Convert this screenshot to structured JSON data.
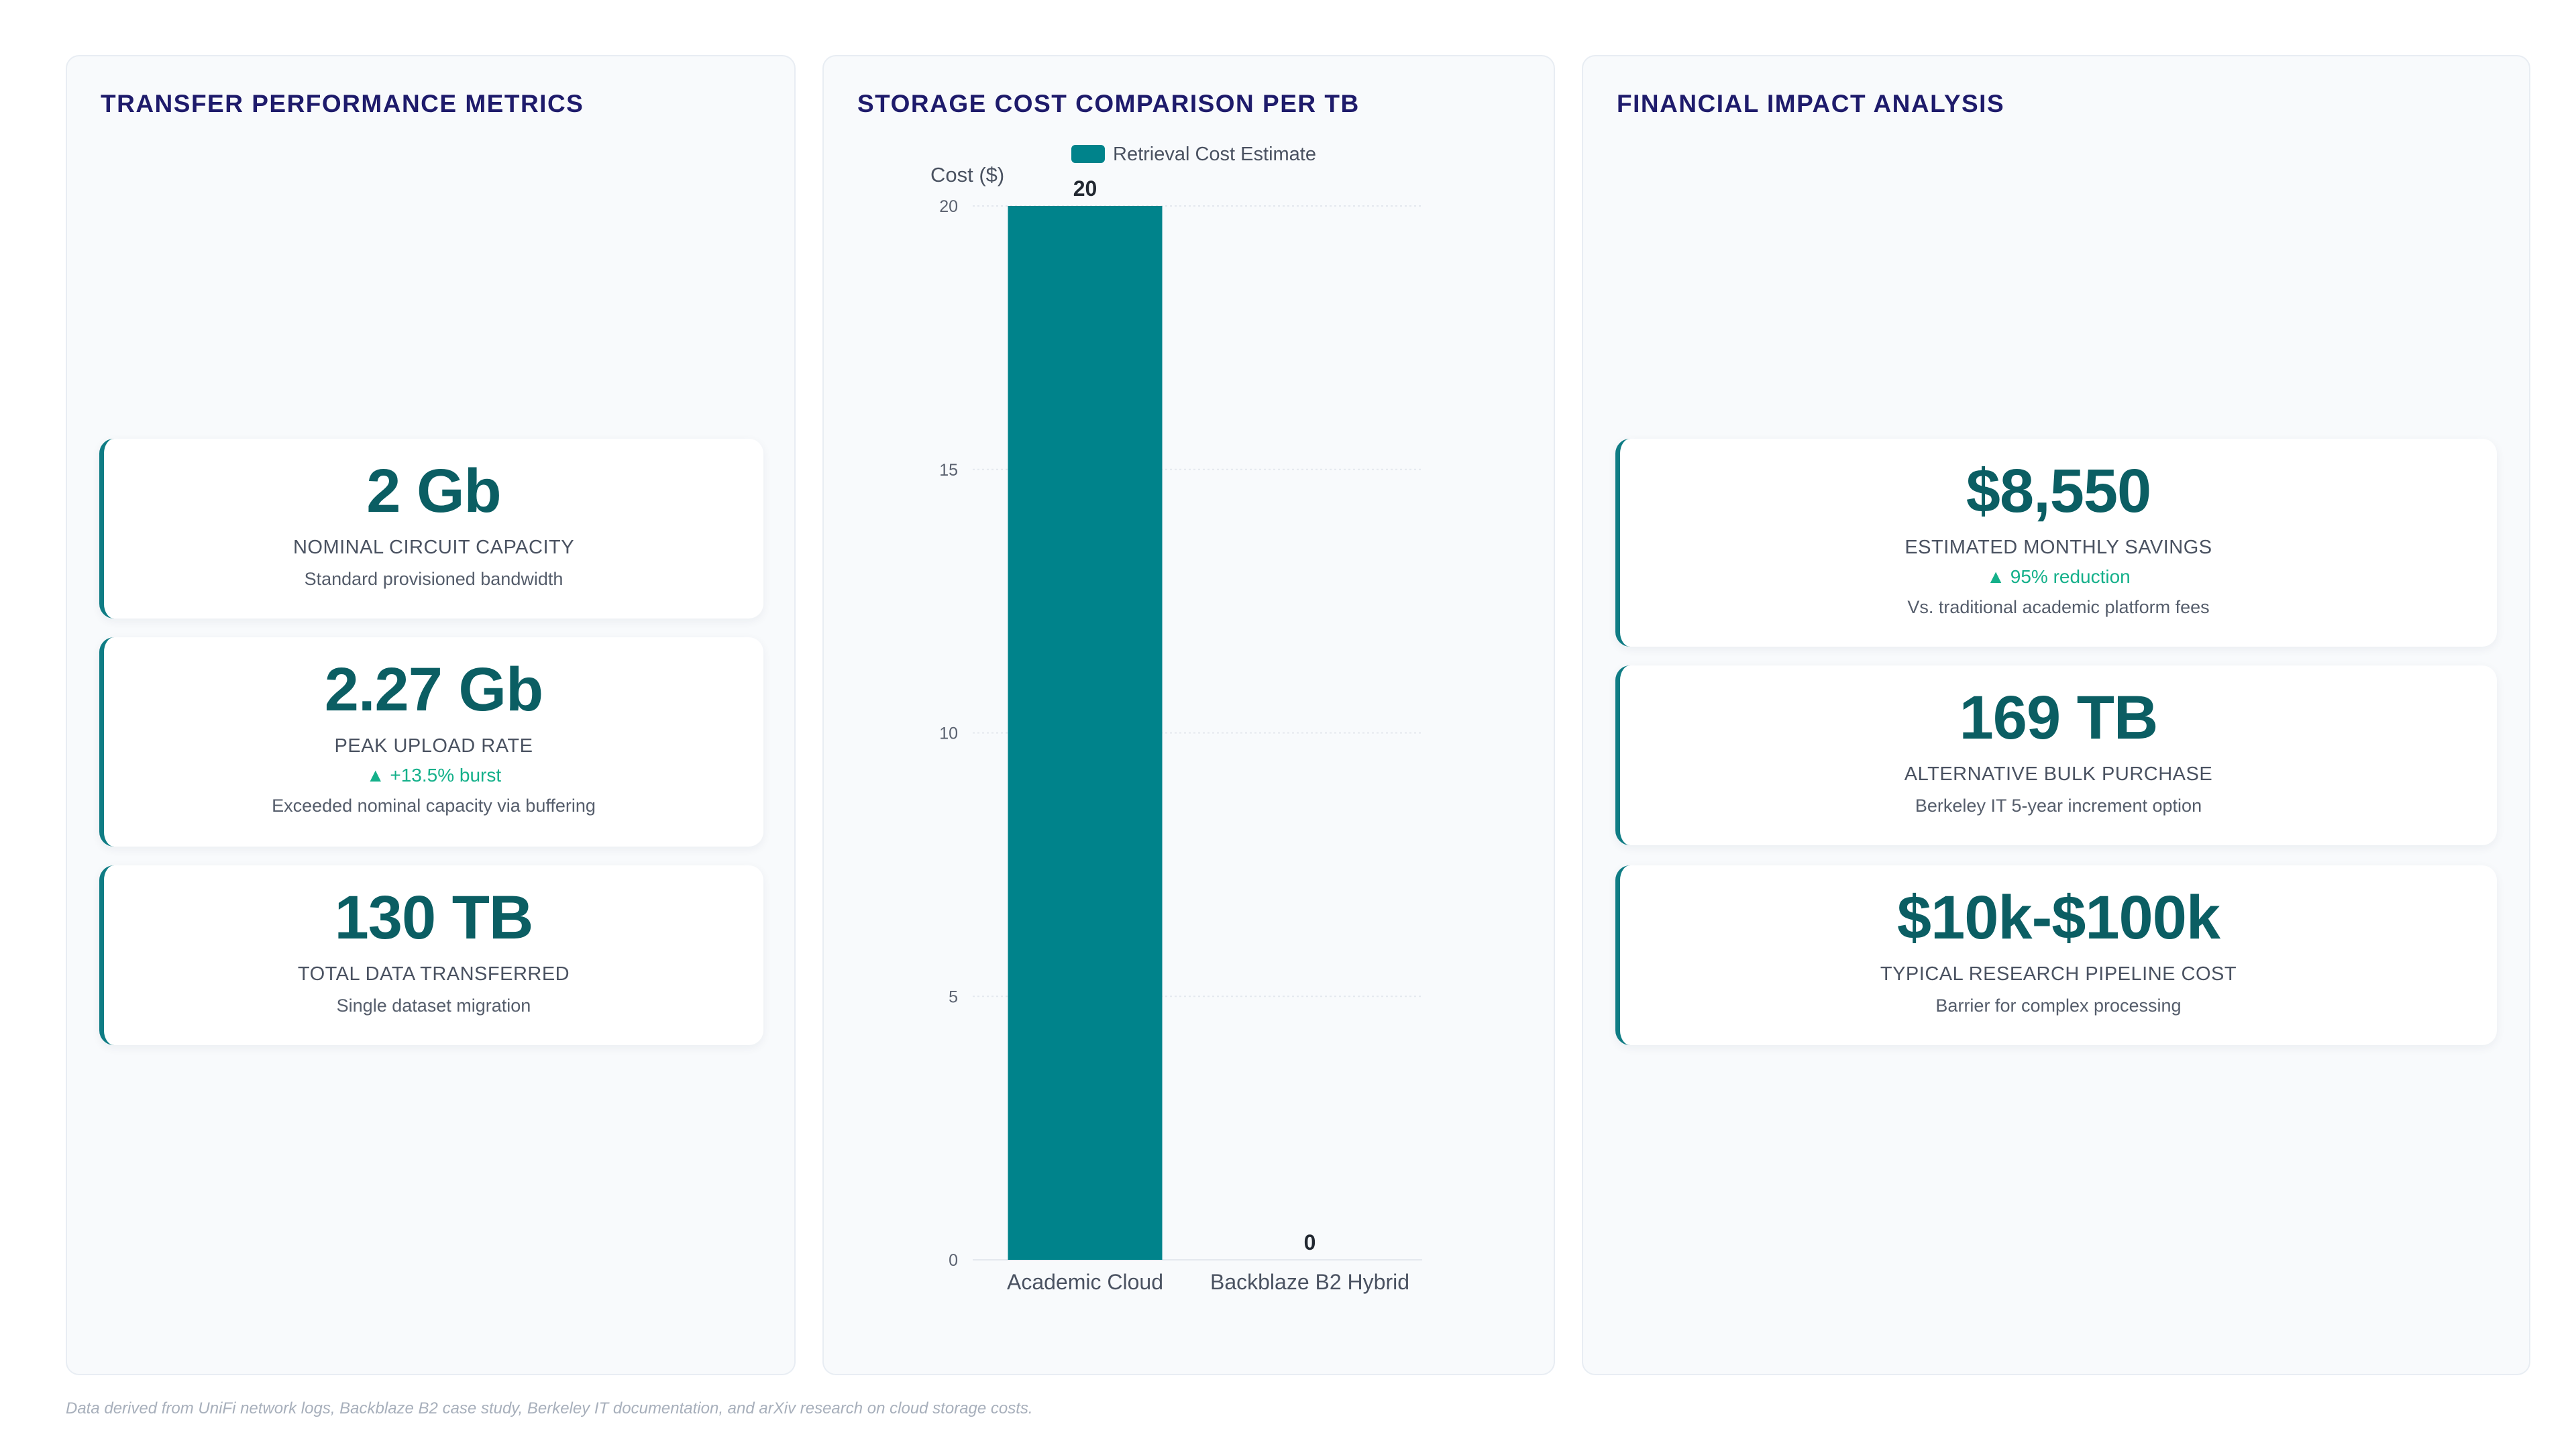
{
  "colors": {
    "accent": "#0f7c84",
    "value_text": "#0b5e63",
    "title": "#1e1b6b",
    "trend": "#14b08a",
    "bar": "#00838b"
  },
  "left": {
    "title": "TRANSFER PERFORMANCE METRICS",
    "cards": [
      {
        "value": "2 Gb",
        "label": "NOMINAL CIRCUIT CAPACITY",
        "sub": "Standard provisioned bandwidth"
      },
      {
        "value": "2.27 Gb",
        "label": "PEAK UPLOAD RATE",
        "trend": "▲ +13.5% burst",
        "sub": "Exceeded nominal capacity via buffering"
      },
      {
        "value": "130 TB",
        "label": "TOTAL DATA TRANSFERRED",
        "sub": "Single dataset migration"
      }
    ]
  },
  "middle": {
    "title": "STORAGE COST COMPARISON PER TB"
  },
  "right": {
    "title": "FINANCIAL IMPACT ANALYSIS",
    "cards": [
      {
        "value": "$8,550",
        "label": "ESTIMATED MONTHLY SAVINGS",
        "trend": "▲ 95% reduction",
        "sub": "Vs. traditional academic platform fees"
      },
      {
        "value": "169 TB",
        "label": "ALTERNATIVE BULK PURCHASE",
        "sub": "Berkeley IT 5-year increment option"
      },
      {
        "value": "$10k-$100k",
        "label": "TYPICAL RESEARCH PIPELINE COST",
        "sub": "Barrier for complex processing"
      }
    ]
  },
  "chart_data": {
    "type": "bar",
    "categories": [
      "Academic Cloud",
      "Backblaze B2 Hybrid"
    ],
    "series": [
      {
        "name": "Retrieval Cost Estimate",
        "values": [
          20,
          0
        ]
      }
    ],
    "ylabel": "Cost ($)",
    "xlabel": "",
    "ylim": [
      0,
      20
    ],
    "yticks": [
      0,
      5,
      10,
      15,
      20
    ],
    "data_labels": [
      "20",
      "0"
    ],
    "legend": "top",
    "grid": true
  },
  "footnote": "Data derived from UniFi network logs, Backblaze B2 case study, Berkeley IT documentation, and arXiv research on cloud storage costs."
}
